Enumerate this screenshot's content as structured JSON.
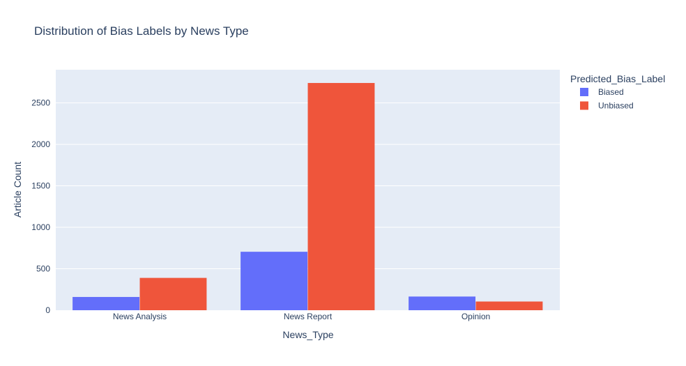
{
  "chart_data": {
    "type": "bar",
    "title": "Distribution of Bias Labels by News Type",
    "xlabel": "News_Type",
    "ylabel": "Article Count",
    "categories": [
      "News Analysis",
      "News Report",
      "Opinion"
    ],
    "series": [
      {
        "name": "Biased",
        "values": [
          160,
          705,
          165
        ],
        "color": "#636efa"
      },
      {
        "name": "Unbiased",
        "values": [
          390,
          2740,
          105
        ],
        "color": "#ef553b"
      }
    ],
    "ylim": [
      0,
      2900
    ],
    "yticks": [
      0,
      500,
      1000,
      1500,
      2000,
      2500
    ],
    "grid": true,
    "legend": {
      "title": "Predicted_Bias_Label",
      "placement": "top-right, outside plot"
    },
    "colors": {
      "plot_bg": "#e5ecf6",
      "grid": "#ffffff",
      "text": "#2a3f5f"
    }
  }
}
